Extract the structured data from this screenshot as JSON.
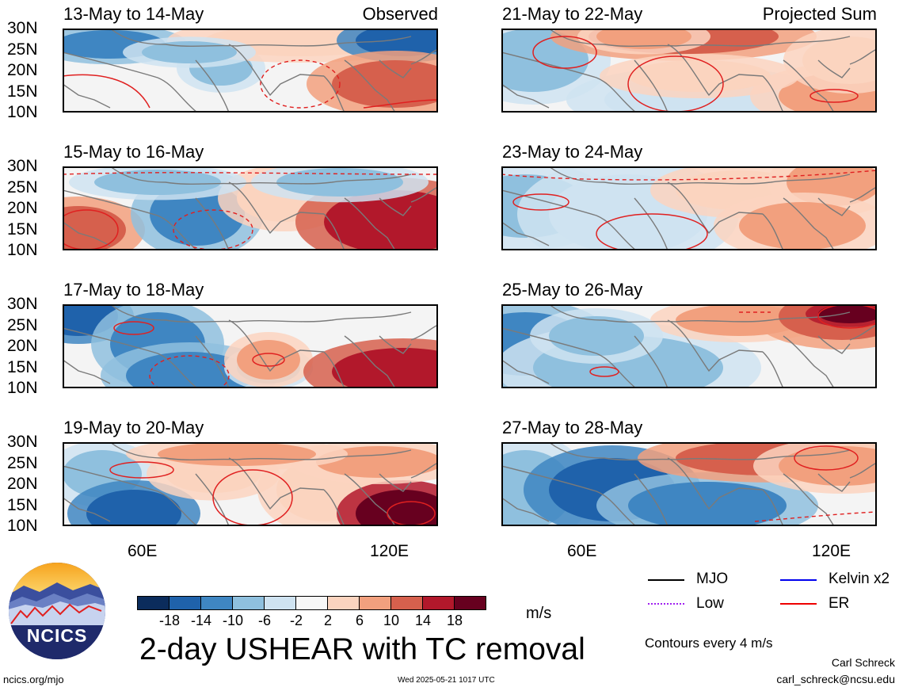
{
  "panels": [
    {
      "date": "13-May to 14-May",
      "tag": "Observed",
      "kind": "obs"
    },
    {
      "date": "15-May to 16-May",
      "tag": "",
      "kind": "obs"
    },
    {
      "date": "17-May to 18-May",
      "tag": "",
      "kind": "obs"
    },
    {
      "date": "19-May to 20-May",
      "tag": "",
      "kind": "obs"
    },
    {
      "date": "21-May to 22-May",
      "tag": "Projected Sum",
      "kind": "proj"
    },
    {
      "date": "23-May to 24-May",
      "tag": "",
      "kind": "proj"
    },
    {
      "date": "25-May to 26-May",
      "tag": "",
      "kind": "proj"
    },
    {
      "date": "27-May to 28-May",
      "tag": "",
      "kind": "proj"
    }
  ],
  "y_ticks": [
    "30N",
    "25N",
    "20N",
    "15N",
    "10N"
  ],
  "x_ticks": [
    "60E",
    "120E"
  ],
  "colorbar": {
    "labels": [
      "-18",
      "-14",
      "-10",
      "-6",
      "-2",
      "2",
      "6",
      "10",
      "14",
      "18"
    ],
    "colors": [
      "#0b2c5c",
      "#1f62ab",
      "#3f86c2",
      "#8fc0de",
      "#cfe3f1",
      "#f7f7f7",
      "#fbd4bf",
      "#f2a07e",
      "#d6604d",
      "#b2182b",
      "#67001f"
    ],
    "unit": "m/s"
  },
  "legend": {
    "mjo": {
      "label": "MJO",
      "color": "#000000"
    },
    "kelvin": {
      "label": "Kelvin x2",
      "color": "#0000ee"
    },
    "low": {
      "label": "Low",
      "color": "#a020f0"
    },
    "er": {
      "label": "ER",
      "color": "#ee0000"
    },
    "contours_note": "Contours every 4 m/s"
  },
  "title": "2-day USHEAR with TC removal",
  "logo_text": "NCICS",
  "footer": {
    "url": "ncics.org/mjo",
    "timestamp": "Wed 2025-05-21 1017 UTC",
    "author": "Carl Schreck",
    "email": "carl_schreck@ncsu.edu"
  }
}
